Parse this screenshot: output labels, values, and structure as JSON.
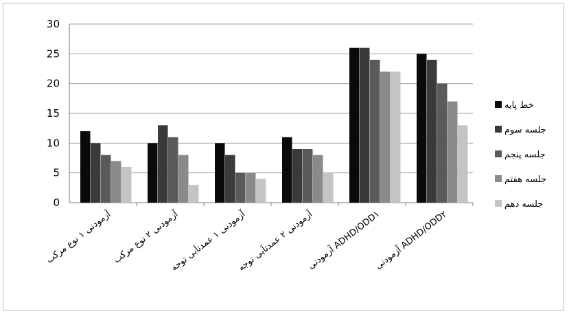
{
  "chart_data": {
    "type": "bar",
    "categories": [
      "آزمودنی ۱ نوع مرکب",
      "آزمودنی ۲ نوع مرکب",
      "آزمودنی ۱ عمدتاَبی توجه",
      "آزمودنی ۲ عمدتاَبی توجه",
      "آزمودنی ADHD/ODD۱",
      "آزمودنی ADHD/ODD۲"
    ],
    "series": [
      {
        "name": "خط پایه",
        "color": "#0a0a0a",
        "values": [
          12,
          10,
          10,
          11,
          26,
          25
        ]
      },
      {
        "name": "جلسه سوم",
        "color": "#3a3a3a",
        "values": [
          10,
          13,
          8,
          9,
          26,
          24
        ]
      },
      {
        "name": "جلسه پنجم",
        "color": "#5a5a5a",
        "values": [
          8,
          11,
          5,
          9,
          24,
          20
        ]
      },
      {
        "name": "جلسه هفتم",
        "color": "#8a8a8a",
        "values": [
          7,
          8,
          5,
          8,
          22,
          17
        ]
      },
      {
        "name": "جلسه دهم",
        "color": "#c4c4c4",
        "values": [
          6,
          3,
          4,
          5,
          22,
          13
        ]
      }
    ],
    "yticks": [
      "0",
      "5",
      "10",
      "15",
      "20",
      "25",
      "30"
    ],
    "ylim": [
      0,
      30
    ],
    "grid": true,
    "legend_position": "right"
  }
}
